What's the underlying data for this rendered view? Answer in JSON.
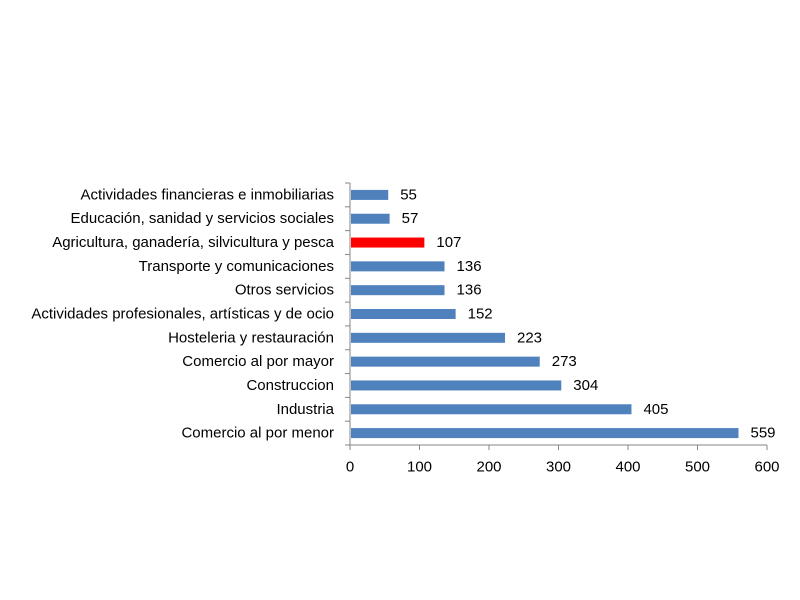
{
  "colors": {
    "bar": "#4F81BD",
    "highlight": "#FF0000",
    "axis": "#868686",
    "background": "#FFFFFF"
  },
  "chart_data": {
    "type": "bar",
    "orientation": "horizontal",
    "title": "",
    "xlabel": "",
    "ylabel": "",
    "xlim": [
      0,
      600
    ],
    "grid": false,
    "legend": "none",
    "x_ticks": [
      0,
      100,
      200,
      300,
      400,
      500,
      600
    ],
    "x_tick_labels": [
      "0",
      "100",
      "200",
      "300",
      "400",
      "500",
      "600"
    ],
    "categories": [
      "Actividades financieras e inmobiliarias",
      "Educación, sanidad y servicios sociales",
      "Agricultura, ganadería, silvicultura y pesca",
      "Transporte y comunicaciones",
      "Otros servicios",
      "Actividades profesionales, artísticas y de ocio",
      "Hosteleria y restauración",
      "Comercio al por mayor",
      "Construccion",
      "Industria",
      "Comercio al por menor"
    ],
    "values": [
      55,
      57,
      107,
      136,
      136,
      152,
      223,
      273,
      304,
      405,
      559
    ],
    "value_labels": [
      "55",
      "57",
      "107",
      "136",
      "136",
      "152",
      "223",
      "273",
      "304",
      "405",
      "559"
    ],
    "highlighted_category": "Agricultura, ganadería, silvicultura y pesca"
  }
}
